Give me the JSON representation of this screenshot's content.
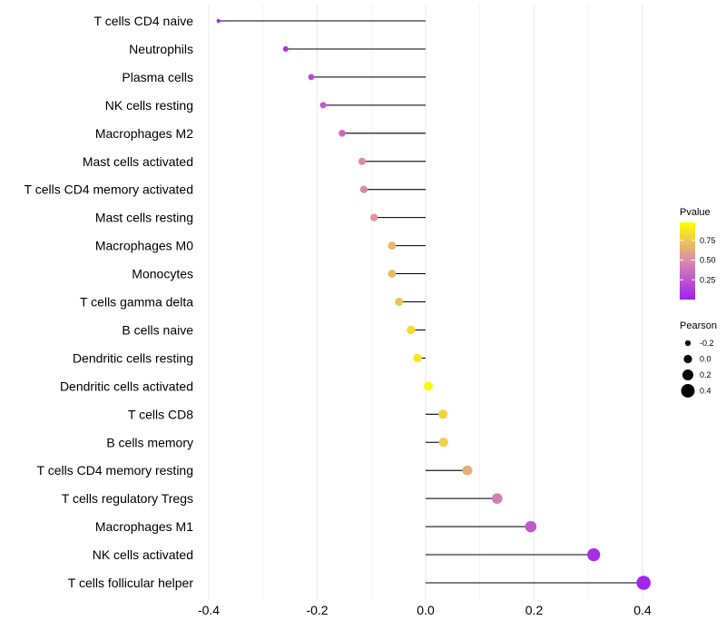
{
  "chart_data": {
    "type": "lollipop",
    "title": "",
    "xlabel": "",
    "ylabel": "",
    "xlim": [
      -0.42,
      0.44
    ],
    "x_ticks": [
      "-0.4",
      "-0.2",
      "0.0",
      "0.2",
      "0.4"
    ],
    "x_tick_values": [
      -0.4,
      -0.2,
      0.0,
      0.2,
      0.4
    ],
    "grid": true,
    "categories": [
      "T cells CD4 naive",
      "Neutrophils",
      "Plasma cells",
      "NK cells resting",
      "Macrophages M2",
      "Mast cells activated",
      "T cells CD4 memory activated",
      "Mast cells resting",
      "Macrophages M0",
      "Monocytes",
      "T cells gamma delta",
      "B cells naive",
      "Dendritic cells resting",
      "Dendritic cells activated",
      "T cells CD8",
      "B cells memory",
      "T cells CD4 memory resting",
      "T cells regulatory  Tregs",
      "Macrophages M1",
      "NK cells activated",
      "T cells follicular helper"
    ],
    "pearson": [
      -0.382,
      -0.258,
      -0.211,
      -0.189,
      -0.154,
      -0.117,
      -0.114,
      -0.095,
      -0.062,
      -0.062,
      -0.049,
      -0.027,
      -0.015,
      0.005,
      0.032,
      0.033,
      0.077,
      0.132,
      0.194,
      0.31,
      0.402
    ],
    "pvalue": [
      0.01,
      0.1,
      0.2,
      0.27,
      0.35,
      0.5,
      0.5,
      0.55,
      0.7,
      0.7,
      0.75,
      0.85,
      0.9,
      0.97,
      0.82,
      0.8,
      0.65,
      0.45,
      0.27,
      0.06,
      0.02
    ],
    "legend": {
      "placement": "right",
      "color_title": "Pvalue",
      "color_ticks": [
        "0.25",
        "0.50",
        "0.75"
      ],
      "color_tick_values": [
        0.25,
        0.5,
        0.75
      ],
      "color_low": "#A020F0",
      "color_mid": "#D98AAE",
      "color_high": "#FFFF00",
      "size_title": "Pearson",
      "size_labels": [
        "-0.2",
        "0.0",
        "0.2",
        "0.4"
      ],
      "size_values": [
        -0.2,
        0.0,
        0.2,
        0.4
      ]
    }
  }
}
